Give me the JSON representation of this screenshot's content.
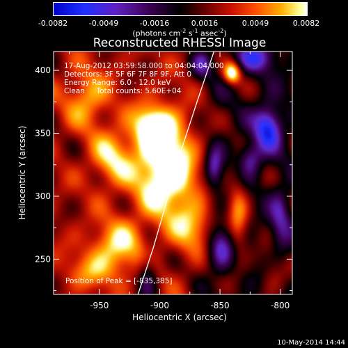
{
  "chart_data": {
    "type": "heatmap",
    "title": "Reconstructed RHESSI Image",
    "xlabel": "Heliocentric X (arcsec)",
    "ylabel": "Heliocentric Y (arcsec)",
    "xlim": [
      -988,
      -790
    ],
    "ylim": [
      222,
      415
    ],
    "x_ticks": [
      -950,
      -900,
      -850,
      -800
    ],
    "y_ticks": [
      250,
      300,
      350,
      400
    ],
    "colorbar": {
      "range": [
        -0.0082,
        0.0082
      ],
      "ticks": [
        "-0.0082",
        "-0.0049",
        "-0.0016",
        "0.0016",
        "0.0049",
        "0.0082"
      ],
      "units_main": "(photons cm",
      "units_sup1": "-2",
      "units_mid1": " s",
      "units_sup2": "-1",
      "units_mid2": " asec",
      "units_sup3": "-2",
      "units_end": ")"
    },
    "annotations": {
      "line1": "17-Aug-2012 03:59:58.000 to 04:04:04.000",
      "line2": "Detectors: 3F 5F 6F 7F 8F 9F, Att 0",
      "line3": "Energy Range: 6.0 - 12.0 keV",
      "line4": "Clean     Total counts: 5.60E+04",
      "peak": "Position of Peak = [-835,385]"
    },
    "limb_curve": [
      [
        -918,
        222
      ],
      [
        -905,
        260
      ],
      [
        -893,
        300
      ],
      [
        -881,
        340
      ],
      [
        -869,
        375
      ],
      [
        -855,
        415
      ]
    ],
    "sources": [
      {
        "x": -895,
        "y": 320,
        "amp": 1.0,
        "sx": 18,
        "sy": 26
      },
      {
        "x": -905,
        "y": 355,
        "amp": 0.8,
        "sx": 12,
        "sy": 12
      },
      {
        "x": -840,
        "y": 398,
        "amp": 1.0,
        "sx": 5,
        "sy": 6
      },
      {
        "x": -940,
        "y": 330,
        "amp": 0.55,
        "sx": 12,
        "sy": 15
      },
      {
        "x": -960,
        "y": 378,
        "amp": 0.5,
        "sx": 13,
        "sy": 16
      },
      {
        "x": -935,
        "y": 260,
        "amp": 0.6,
        "sx": 16,
        "sy": 14
      },
      {
        "x": -870,
        "y": 275,
        "amp": 0.55,
        "sx": 12,
        "sy": 14
      },
      {
        "x": -835,
        "y": 285,
        "amp": 0.55,
        "sx": 6,
        "sy": 22
      },
      {
        "x": -955,
        "y": 240,
        "amp": 0.35,
        "sx": 16,
        "sy": 10
      },
      {
        "x": -805,
        "y": 240,
        "amp": 0.25,
        "sx": 8,
        "sy": 15
      },
      {
        "x": -810,
        "y": 355,
        "amp": -0.9,
        "sx": 8,
        "sy": 12
      },
      {
        "x": -825,
        "y": 330,
        "amp": -0.55,
        "sx": 7,
        "sy": 9
      },
      {
        "x": -855,
        "y": 322,
        "amp": -0.6,
        "sx": 5,
        "sy": 12
      },
      {
        "x": -820,
        "y": 410,
        "amp": -0.6,
        "sx": 12,
        "sy": 8
      },
      {
        "x": -910,
        "y": 238,
        "amp": -0.5,
        "sx": 6,
        "sy": 14
      },
      {
        "x": -850,
        "y": 260,
        "amp": -0.6,
        "sx": 8,
        "sy": 12
      },
      {
        "x": -865,
        "y": 405,
        "amp": -0.5,
        "sx": 6,
        "sy": 8
      },
      {
        "x": -800,
        "y": 280,
        "amp": -0.45,
        "sx": 6,
        "sy": 20
      }
    ]
  },
  "footer": {
    "date": "10-May-2014 14:44"
  }
}
